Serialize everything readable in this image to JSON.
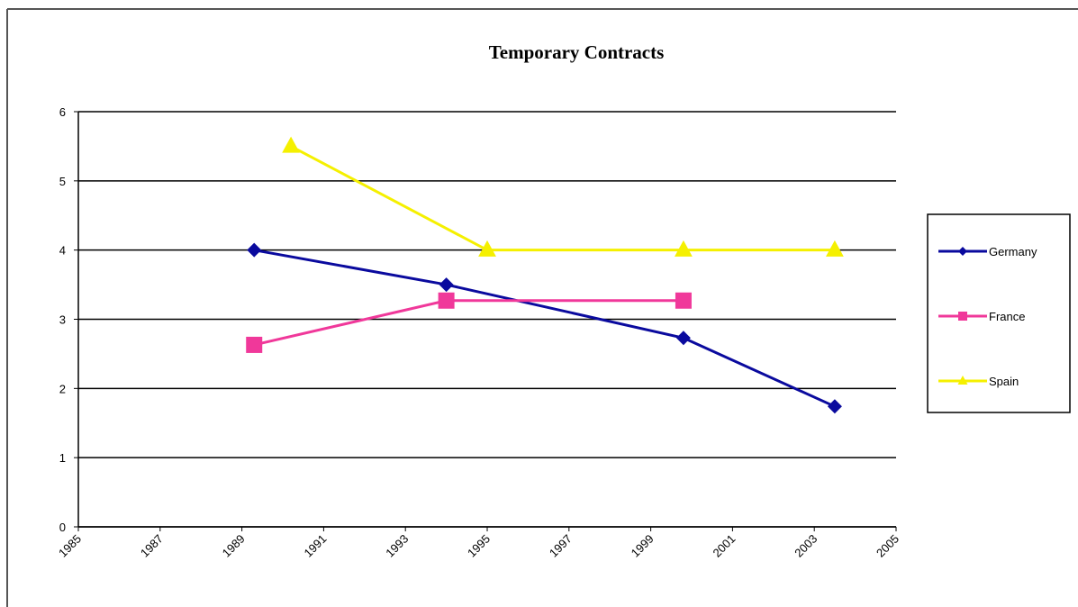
{
  "chart_data": {
    "type": "line",
    "title": "Temporary Contracts",
    "xlim": [
      1985,
      2005
    ],
    "xticks": [
      1985,
      1987,
      1989,
      1991,
      1993,
      1995,
      1997,
      1999,
      2001,
      2003,
      2005
    ],
    "ylim": [
      0,
      6
    ],
    "yticks": [
      0,
      1,
      2,
      3,
      4,
      5,
      6
    ],
    "grid": true,
    "legend": "right",
    "series": [
      {
        "name": "Germany",
        "color": "#0a0a9e",
        "marker": "diamond",
        "x": [
          1989.3,
          1994,
          1999.8,
          2003.5
        ],
        "values": [
          4,
          3.5,
          2.73,
          1.74
        ]
      },
      {
        "name": "France",
        "color": "#f0389a",
        "marker": "square",
        "x": [
          1989.3,
          1994,
          1999.8
        ],
        "values": [
          2.63,
          3.27,
          3.27
        ]
      },
      {
        "name": "Spain",
        "color": "#f5f000",
        "marker": "triangle",
        "x": [
          1990.2,
          1995,
          1999.8,
          2003.5
        ],
        "values": [
          5.5,
          4,
          4,
          4
        ]
      }
    ]
  }
}
